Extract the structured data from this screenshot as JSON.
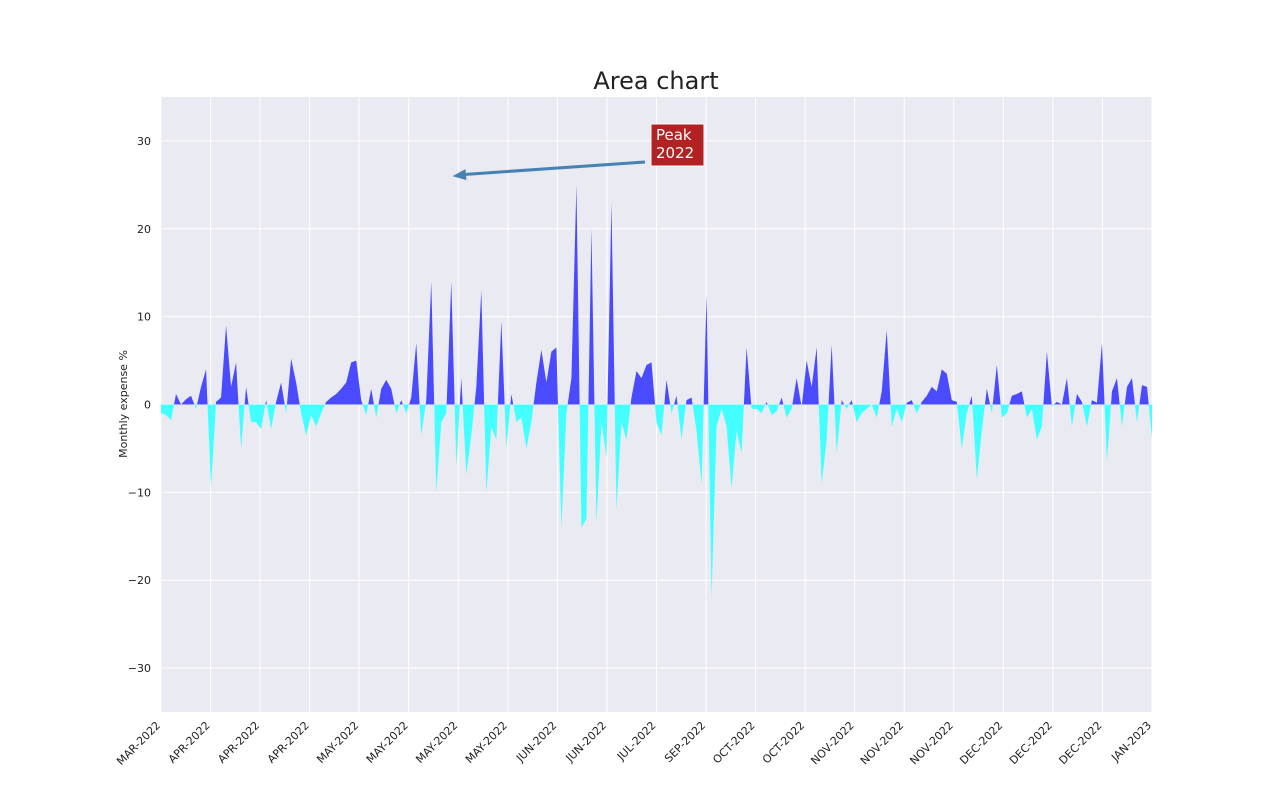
{
  "chart_data": {
    "type": "area",
    "title": "Area chart",
    "xlabel": "",
    "ylabel": "Monthly expense %",
    "ylim": [
      -35,
      35
    ],
    "yticks": [
      -30,
      -20,
      -10,
      0,
      10,
      20,
      30
    ],
    "ytick_labels": [
      "−30",
      "−20",
      "−10",
      "0",
      "10",
      "20",
      "30"
    ],
    "xlim": [
      "2022-03-01",
      "2023-01-01"
    ],
    "xtick_labels": [
      "MAR-2022",
      "APR-2022",
      "APR-2022",
      "APR-2022",
      "MAY-2022",
      "MAY-2022",
      "MAY-2022",
      "MAY-2022",
      "JUN-2022",
      "JUN-2022",
      "JUL-2022",
      "SEP-2022",
      "OCT-2022",
      "OCT-2022",
      "NOV-2022",
      "NOV-2022",
      "NOV-2022",
      "DEC-2022",
      "DEC-2022",
      "DEC-2022",
      "JAN-2023"
    ],
    "grid": true,
    "positive_color": "#4a4aff",
    "negative_color": "#44ffff",
    "background_color": "#eaeaf2",
    "annotation": {
      "text_lines": [
        "Peak",
        "2022"
      ],
      "x": "2022-05-30",
      "y": 26,
      "box_color": "#b22222",
      "arrow_color": "#4682b4"
    },
    "series": [
      {
        "values": [
          -1.0,
          -1.2,
          -1.8,
          1.2,
          0.0,
          0.6,
          1.0,
          -0.5,
          2.0,
          4.0,
          -9.5,
          0.3,
          0.8,
          9.0,
          2.0,
          4.8,
          -5.0,
          2.0,
          -2.0,
          -2.0,
          -2.8,
          0.5,
          -2.8,
          0.3,
          2.5,
          -1.0,
          5.2,
          2.5,
          -1.0,
          -3.5,
          -1.2,
          -2.5,
          -1.0,
          0.3,
          0.8,
          1.2,
          1.8,
          2.5,
          4.8,
          5.0,
          0.5,
          -1.2,
          1.8,
          -1.5,
          1.8,
          2.8,
          1.8,
          -1.0,
          0.5,
          -1.0,
          0.8,
          7.0,
          -3.5,
          0.5,
          14.0,
          -10.0,
          -2.0,
          -1.0,
          14.0,
          -7.0,
          3.0,
          -8.0,
          -3.5,
          2.0,
          13.0,
          -10.0,
          -2.5,
          -4.0,
          9.5,
          -5.0,
          1.2,
          -2.0,
          -1.5,
          -5.0,
          -2.0,
          2.5,
          6.2,
          2.5,
          6.0,
          6.5,
          -14.0,
          -1.0,
          3.0,
          25.0,
          -14.0,
          -13.0,
          20.0,
          -13.5,
          -2.0,
          -6.0,
          23.0,
          -12.0,
          -2.0,
          -4.0,
          0.8,
          3.8,
          3.0,
          4.5,
          4.8,
          -2.0,
          -3.5,
          2.8,
          -1.0,
          1.0,
          -4.0,
          0.5,
          0.8,
          -3.0,
          -9.0,
          12.5,
          -22.0,
          -2.5,
          -0.5,
          -2.5,
          -9.5,
          -3.0,
          -5.5,
          6.5,
          -0.5,
          -0.5,
          -1.0,
          0.3,
          -1.2,
          -0.8,
          0.8,
          -1.5,
          -0.5,
          3.0,
          -0.3,
          5.0,
          2.0,
          6.5,
          -9.0,
          -4.0,
          6.8,
          -5.5,
          0.5,
          -0.5,
          0.5,
          -2.0,
          -1.0,
          -0.5,
          0.0,
          -1.5,
          1.5,
          8.5,
          -2.5,
          -0.5,
          -2.0,
          0.2,
          0.5,
          -1.0,
          0.3,
          1.0,
          2.0,
          1.5,
          4.0,
          3.5,
          0.5,
          0.3,
          -5.0,
          -1.0,
          1.0,
          -8.5,
          -3.0,
          1.8,
          -1.0,
          4.5,
          -1.5,
          -1.0,
          1.0,
          1.2,
          1.5,
          -1.5,
          -0.5,
          -4.0,
          -2.5,
          6.0,
          -0.2,
          0.3,
          0.0,
          3.0,
          -2.5,
          1.2,
          0.3,
          -2.5,
          0.5,
          0.2,
          7.0,
          -6.5,
          1.5,
          3.0,
          -2.5,
          2.0,
          3.0,
          -2.0,
          2.2,
          2.0,
          -3.8
        ]
      }
    ]
  }
}
